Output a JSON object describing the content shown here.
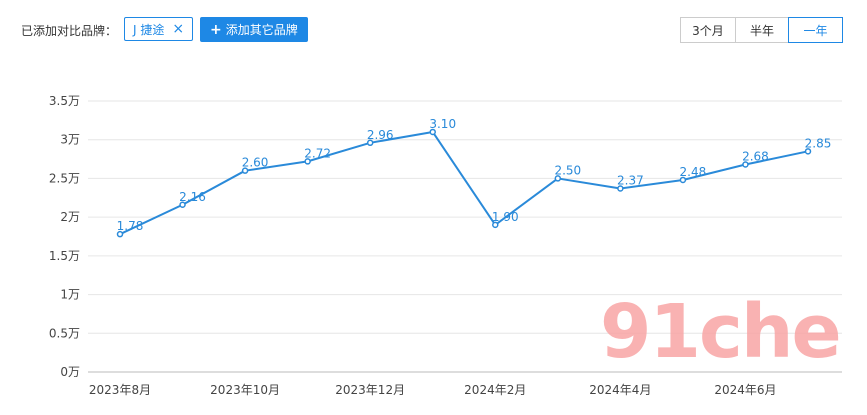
{
  "toolbar": {
    "added_label": "已添加对比品牌：",
    "brand_tag": {
      "label": "J 捷途",
      "close_icon": "×"
    },
    "add_button": {
      "plus": "+",
      "label": "添加其它品牌"
    },
    "ranges": [
      {
        "label": "3个月",
        "active": false
      },
      {
        "label": "半年",
        "active": false
      },
      {
        "label": "一年",
        "active": true
      }
    ]
  },
  "watermark": "91che",
  "colors": {
    "line": "#2a8ad9",
    "accent": "#1e88e5",
    "grid": "#e6e6e6",
    "watermark": "#f8a5a5"
  },
  "chart_data": {
    "type": "line",
    "ylim": [
      0,
      35000
    ],
    "yticks": [
      {
        "value": 0,
        "label": "0万"
      },
      {
        "value": 5000,
        "label": "0.5万"
      },
      {
        "value": 10000,
        "label": "1万"
      },
      {
        "value": 15000,
        "label": "1.5万"
      },
      {
        "value": 20000,
        "label": "2万"
      },
      {
        "value": 25000,
        "label": "2.5万"
      },
      {
        "value": 30000,
        "label": "3万"
      },
      {
        "value": 35000,
        "label": "3.5万"
      }
    ],
    "x": [
      "2023-08",
      "2023-09",
      "2023-10",
      "2023-11",
      "2023-12",
      "2024-01",
      "2024-02",
      "2024-03",
      "2024-04",
      "2024-05",
      "2024-06",
      "2024-07"
    ],
    "xtick_labels": [
      {
        "index": 0,
        "label": "2023年8月"
      },
      {
        "index": 2,
        "label": "2023年10月"
      },
      {
        "index": 4,
        "label": "2023年12月"
      },
      {
        "index": 6,
        "label": "2024年2月"
      },
      {
        "index": 8,
        "label": "2024年4月"
      },
      {
        "index": 10,
        "label": "2024年6月"
      }
    ],
    "values": [
      17800,
      21600,
      26000,
      27200,
      29600,
      31000,
      19000,
      25000,
      23700,
      24800,
      26800,
      28500
    ],
    "data_labels": [
      "1.78",
      "2.16",
      "2.60",
      "2.72",
      "2.96",
      "3.10",
      "1.90",
      "2.50",
      "2.37",
      "2.48",
      "2.68",
      "2.85"
    ],
    "grid": true
  }
}
